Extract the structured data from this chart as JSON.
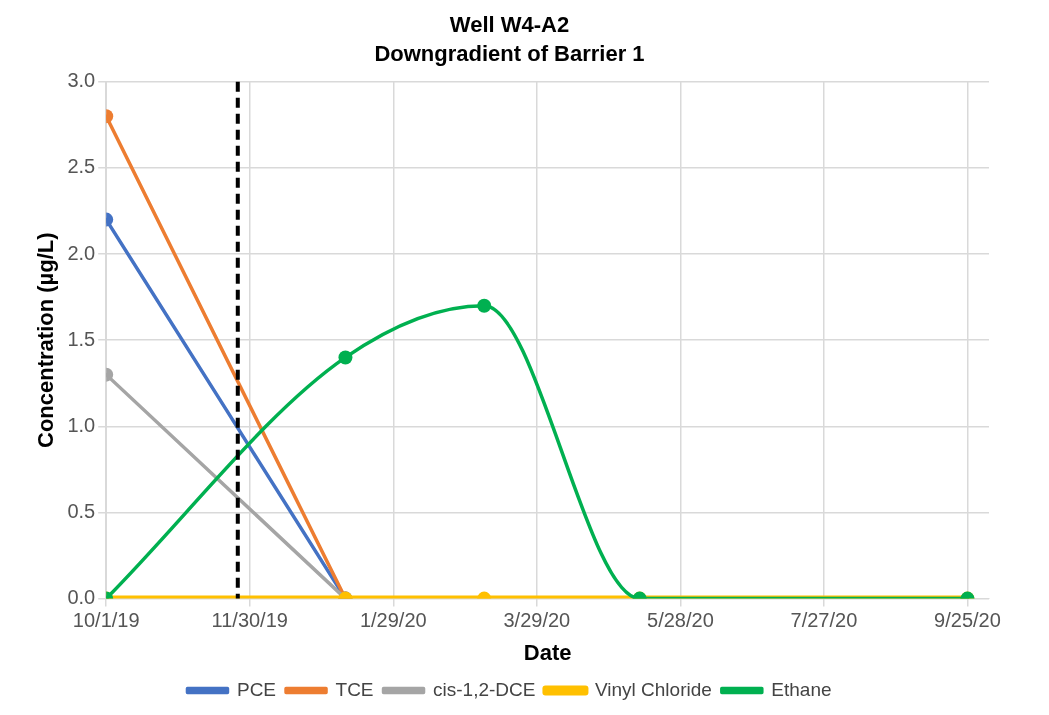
{
  "chart_data": {
    "type": "line",
    "title": "Well W4-A2",
    "subtitle": "Downgradient of Barrier 1",
    "xlabel": "Date",
    "ylabel": "Concentration (µg/L)",
    "x": [
      "2019-10-01",
      "2020-01-09",
      "2020-03-07",
      "2020-05-11",
      "2020-09-25"
    ],
    "series": [
      {
        "name": "PCE",
        "color": "#4472c4",
        "values": [
          2.2,
          0,
          null,
          null,
          null
        ]
      },
      {
        "name": "TCE",
        "color": "#ed7d31",
        "values": [
          2.8,
          0,
          null,
          null,
          null
        ]
      },
      {
        "name": "cis-1,2-DCE",
        "color": "#a5a5a5",
        "values": [
          1.3,
          0,
          null,
          null,
          null
        ]
      },
      {
        "name": "Vinyl Chloride",
        "color": "#ffc000",
        "values": [
          0,
          0,
          0,
          0,
          0
        ]
      },
      {
        "name": "Ethane",
        "color": "#00b050",
        "values": [
          0,
          1.4,
          1.7,
          0,
          0
        ]
      }
    ],
    "xlim": [
      "2019-10-01",
      "2020-10-04"
    ],
    "xticks": [
      {
        "value": "2019-10-01",
        "label": "10/1/19"
      },
      {
        "value": "2019-11-30",
        "label": "11/30/19"
      },
      {
        "value": "2020-01-29",
        "label": "1/29/20"
      },
      {
        "value": "2020-03-29",
        "label": "3/29/20"
      },
      {
        "value": "2020-05-28",
        "label": "5/28/20"
      },
      {
        "value": "2020-07-27",
        "label": "7/27/20"
      },
      {
        "value": "2020-09-25",
        "label": "9/25/20"
      }
    ],
    "ylim": [
      0,
      3
    ],
    "yticks": [
      {
        "value": 0,
        "label": "0.0"
      },
      {
        "value": 0.5,
        "label": "0.5"
      },
      {
        "value": 1,
        "label": "1.0"
      },
      {
        "value": 1.5,
        "label": "1.5"
      },
      {
        "value": 2,
        "label": "2.0"
      },
      {
        "value": 2.5,
        "label": "2.5"
      },
      {
        "value": 3,
        "label": "3.0"
      }
    ],
    "ref_lines": [
      {
        "axis": "x",
        "value": "2019-11-25",
        "color": "#000000",
        "line_style": "dashed"
      }
    ],
    "grid": true,
    "legend": "bottom",
    "marker": "circle",
    "line_style": "solid"
  }
}
